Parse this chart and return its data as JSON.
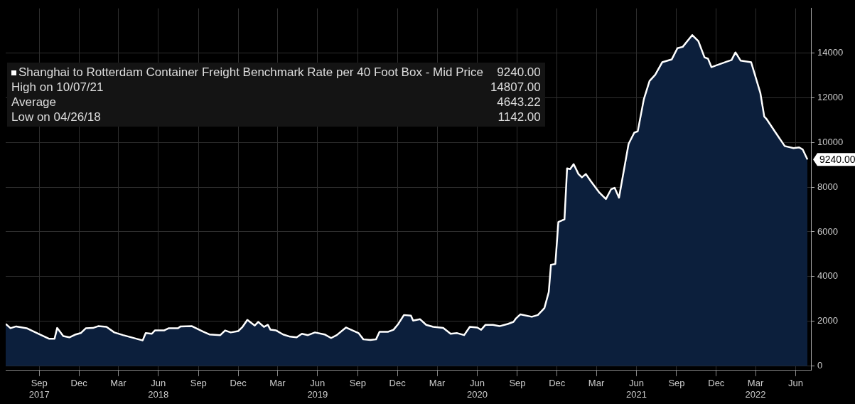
{
  "chart_data": {
    "type": "area",
    "x": [
      "2017-06-16",
      "2017-06-27",
      "2017-07-10",
      "2017-08-03",
      "2017-09-02",
      "2017-09-23",
      "2017-10-06",
      "2017-10-12",
      "2017-10-26",
      "2017-11-09",
      "2017-11-22",
      "2017-12-05",
      "2017-12-17",
      "2018-01-02",
      "2018-01-14",
      "2018-02-02",
      "2018-02-20",
      "2018-03-12",
      "2018-04-26",
      "2018-05-03",
      "2018-05-17",
      "2018-05-24",
      "2018-06-14",
      "2018-06-25",
      "2018-07-16",
      "2018-07-22",
      "2018-08-17",
      "2018-09-12",
      "2018-09-26",
      "2018-10-21",
      "2018-11-01",
      "2018-11-14",
      "2018-12-01",
      "2018-12-11",
      "2018-12-22",
      "2019-01-08",
      "2019-01-16",
      "2019-01-29",
      "2019-02-07",
      "2019-02-13",
      "2019-02-26",
      "2019-03-14",
      "2019-03-30",
      "2019-04-14",
      "2019-04-26",
      "2019-05-10",
      "2019-05-26",
      "2019-06-17",
      "2019-07-02",
      "2019-07-15",
      "2019-08-05",
      "2019-09-03",
      "2019-09-14",
      "2019-09-30",
      "2019-10-13",
      "2019-10-21",
      "2019-11-10",
      "2019-11-22",
      "2019-12-03",
      "2019-12-16",
      "2020-01-01",
      "2020-01-06",
      "2020-01-22",
      "2020-02-05",
      "2020-02-21",
      "2020-03-15",
      "2020-04-01",
      "2020-04-16",
      "2020-05-02",
      "2020-05-15",
      "2020-06-01",
      "2020-06-10",
      "2020-06-20",
      "2020-07-07",
      "2020-07-22",
      "2020-08-10",
      "2020-08-23",
      "2020-08-29",
      "2020-09-08",
      "2020-10-04",
      "2020-10-18",
      "2020-11-02",
      "2020-11-12",
      "2020-11-17",
      "2020-11-27",
      "2020-12-04",
      "2020-12-18",
      "2020-12-24",
      "2020-12-31",
      "2021-01-08",
      "2021-01-19",
      "2021-01-27",
      "2021-02-05",
      "2021-02-17",
      "2021-03-07",
      "2021-03-23",
      "2021-04-04",
      "2021-04-12",
      "2021-04-22",
      "2021-05-14",
      "2021-05-27",
      "2021-06-04",
      "2021-06-18",
      "2021-07-01",
      "2021-07-14",
      "2021-07-30",
      "2021-08-21",
      "2021-09-03",
      "2021-09-15",
      "2021-10-07",
      "2021-10-21",
      "2021-11-04",
      "2021-11-12",
      "2021-11-20",
      "2021-12-25",
      "2022-01-05",
      "2022-01-14",
      "2022-01-26",
      "2022-02-19",
      "2022-03-12",
      "2022-03-21",
      "2022-03-27",
      "2022-04-15",
      "2022-05-07",
      "2022-05-27",
      "2022-06-09",
      "2022-06-17",
      "2022-06-28"
    ],
    "series": [
      {
        "name": "Shanghai to Rotterdam Container Freight Benchmark Rate per 40 Foot Box - Mid Price",
        "color": "#0c1f3c",
        "values": [
          1880,
          1690,
          1770,
          1690,
          1410,
          1220,
          1220,
          1700,
          1340,
          1280,
          1400,
          1470,
          1690,
          1700,
          1780,
          1750,
          1500,
          1380,
          1142,
          1470,
          1440,
          1590,
          1590,
          1690,
          1690,
          1770,
          1780,
          1530,
          1410,
          1380,
          1590,
          1500,
          1560,
          1750,
          2060,
          1810,
          1970,
          1750,
          1840,
          1620,
          1590,
          1410,
          1310,
          1280,
          1440,
          1380,
          1500,
          1410,
          1250,
          1380,
          1720,
          1470,
          1190,
          1160,
          1190,
          1530,
          1530,
          1620,
          1880,
          2280,
          2250,
          2030,
          2090,
          1840,
          1750,
          1700,
          1440,
          1470,
          1380,
          1750,
          1720,
          1620,
          1840,
          1840,
          1780,
          1880,
          1970,
          2130,
          2310,
          2200,
          2280,
          2590,
          3310,
          4530,
          4560,
          6440,
          6560,
          8840,
          8810,
          9030,
          8590,
          8440,
          8590,
          8250,
          7780,
          7470,
          7910,
          7970,
          7530,
          9940,
          10440,
          10500,
          11940,
          12750,
          13030,
          13590,
          13720,
          14220,
          14280,
          14807,
          14530,
          13810,
          13750,
          13370,
          13620,
          13690,
          14030,
          13660,
          13590,
          12220,
          11160,
          11030,
          10470,
          9840,
          9750,
          9780,
          9690,
          9240
        ]
      }
    ],
    "xlim": [
      "2017-06-16",
      "2022-07-06"
    ],
    "xticks": [
      {
        "value": "2017-09",
        "label": "Sep\n2017"
      },
      {
        "value": "2017-12",
        "label": "Dec"
      },
      {
        "value": "2018-03",
        "label": "Mar"
      },
      {
        "value": "2018-06",
        "label": "Jun\n2018"
      },
      {
        "value": "2018-09",
        "label": "Sep"
      },
      {
        "value": "2018-12",
        "label": "Dec"
      },
      {
        "value": "2019-03",
        "label": "Mar"
      },
      {
        "value": "2019-06",
        "label": "Jun\n2019"
      },
      {
        "value": "2019-09",
        "label": "Sep"
      },
      {
        "value": "2019-12",
        "label": "Dec"
      },
      {
        "value": "2020-03",
        "label": "Mar"
      },
      {
        "value": "2020-06",
        "label": "Jun\n2020"
      },
      {
        "value": "2020-09",
        "label": "Sep"
      },
      {
        "value": "2020-12",
        "label": "Dec"
      },
      {
        "value": "2021-03",
        "label": "Mar"
      },
      {
        "value": "2021-06",
        "label": "Jun\n2021"
      },
      {
        "value": "2021-09",
        "label": "Sep"
      },
      {
        "value": "2021-12",
        "label": "Dec"
      },
      {
        "value": "2022-03",
        "label": "Mar\n2022"
      },
      {
        "value": "2022-06",
        "label": "Jun"
      }
    ],
    "ylim": [
      -200,
      16000
    ],
    "yticks": [
      0,
      2000,
      4000,
      6000,
      8000,
      10000,
      12000,
      14000
    ],
    "grid": true,
    "legend": "top left",
    "annotations": [
      "9240.00",
      "High on 10/07/21",
      "14807.00",
      "Average",
      "4643.22",
      "Low on 04/26/18",
      "1142.00",
      "9240.00"
    ]
  }
}
